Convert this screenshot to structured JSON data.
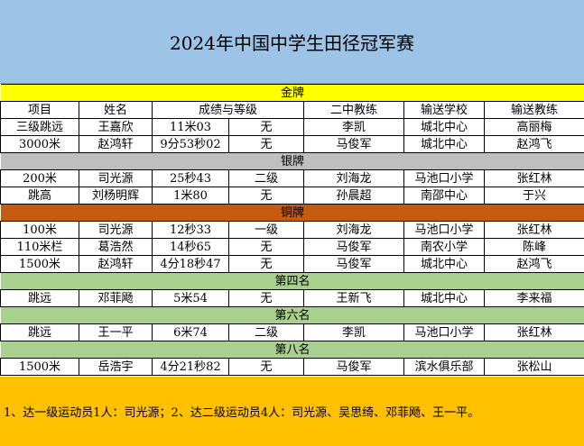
{
  "title": "2024年中国中学生田径冠军赛",
  "headers": [
    "项目",
    "姓名",
    "成绩与等级",
    "",
    "二中教练",
    "输送学校",
    "输送教练"
  ],
  "sections": {
    "gold": "金牌",
    "silver": "银牌",
    "bronze": "铜牌",
    "fourth": "第四名",
    "sixth": "第六名",
    "eighth": "第八名"
  },
  "rows": {
    "g1": [
      "三级跳远",
      "王嘉欣",
      "11米03",
      "无",
      "李凯",
      "城北中心",
      "高丽梅"
    ],
    "g2": [
      "3000米",
      "赵鸿轩",
      "9分53秒02",
      "无",
      "马俊军",
      "城北中心",
      "赵鸿飞"
    ],
    "s1": [
      "200米",
      "司光源",
      "25秒43",
      "二级",
      "刘海龙",
      "马池口小学",
      "张红林"
    ],
    "s2": [
      "跳高",
      "刘杨明辉",
      "1米80",
      "无",
      "孙晨超",
      "南邵中心",
      "于兴"
    ],
    "b1": [
      "100米",
      "司光源",
      "12秒33",
      "一级",
      "刘海龙",
      "马池口小学",
      "张红林"
    ],
    "b2": [
      "110米栏",
      "葛浩然",
      "14秒65",
      "无",
      "马俊军",
      "南农小学",
      "陈峰"
    ],
    "b3": [
      "1500米",
      "赵鸿轩",
      "4分18秒47",
      "无",
      "马俊军",
      "城北中心",
      "赵鸿飞"
    ],
    "f1": [
      "跳远",
      "邓菲飏",
      "5米54",
      "无",
      "王新飞",
      "城北中心",
      "李来福"
    ],
    "x1": [
      "跳远",
      "王一平",
      "6米74",
      "二级",
      "李凯",
      "马池口小学",
      "张红林"
    ],
    "e1": [
      "1500米",
      "岳浩宇",
      "4分21秒82",
      "无",
      "马俊军",
      "滨水俱乐部",
      "张松山"
    ]
  },
  "footer": "1、达一级运动员1人：司光源；2、达二级运动员4人：司光源、吴思绮、邓菲飏、王一平。",
  "colors": {
    "title_bg": "#9dc3e6",
    "gold": "#ffff00",
    "silver": "#bfbfbf",
    "bronze": "#c55a11",
    "green": "#a9d08e",
    "footer_bg": "#ffc000"
  }
}
